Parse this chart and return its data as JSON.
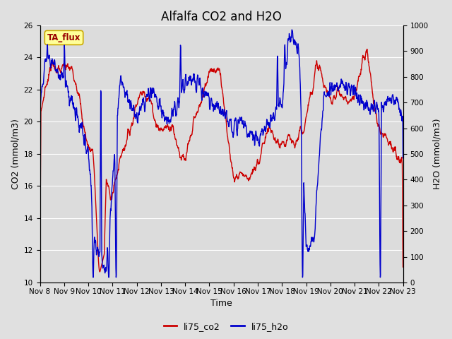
{
  "title": "Alfalfa CO2 and H2O",
  "xlabel": "Time",
  "ylabel_left": "CO2 (mmol/m3)",
  "ylabel_right": "H2O (mmol/m3)",
  "ylim_left": [
    10,
    26
  ],
  "ylim_right": [
    0,
    1000
  ],
  "yticks_left": [
    10,
    12,
    14,
    16,
    18,
    20,
    22,
    24,
    26
  ],
  "yticks_right": [
    0,
    100,
    200,
    300,
    400,
    500,
    600,
    700,
    800,
    900,
    1000
  ],
  "xtick_labels": [
    "Nov 8",
    "Nov 9",
    "Nov 10",
    "Nov 11",
    "Nov 12",
    "Nov 13",
    "Nov 14",
    "Nov 15",
    "Nov 16",
    "Nov 17",
    "Nov 18",
    "Nov 19",
    "Nov 20",
    "Nov 21",
    "Nov 22",
    "Nov 23"
  ],
  "legend_label_co2": "li75_co2",
  "legend_label_h2o": "li75_h2o",
  "annotation_text": "TA_flux",
  "co2_color": "#cc0000",
  "h2o_color": "#0000cc",
  "fig_facecolor": "#e0e0e0",
  "plot_facecolor": "#dcdcdc",
  "annotation_bg": "#ffff99",
  "annotation_border": "#ccaa00",
  "line_width": 1.0,
  "title_fontsize": 12,
  "axis_label_fontsize": 9,
  "tick_fontsize": 7.5,
  "n_days": 15,
  "n_per_day": 96,
  "figsize": [
    6.4,
    4.8
  ],
  "dpi": 100
}
